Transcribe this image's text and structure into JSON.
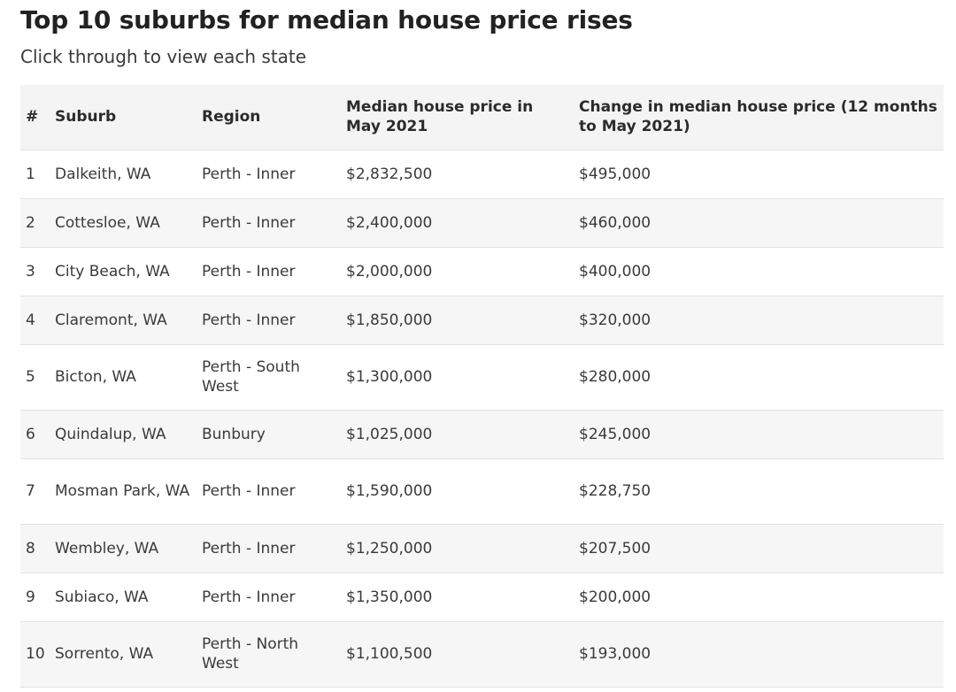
{
  "page": {
    "title": "Top 10 suburbs for median house price rises",
    "subtitle": "Click through to view each state"
  },
  "table": {
    "headers": {
      "num": "#",
      "suburb": "Suburb",
      "region": "Region",
      "median": "Median house price in May 2021",
      "change": "Change in median house price (12 months to May 2021)"
    },
    "rows": [
      {
        "num": "1",
        "suburb": "Dalkeith, WA",
        "region": "Perth - Inner",
        "median": "$2,832,500",
        "change": "$495,000"
      },
      {
        "num": "2",
        "suburb": "Cottesloe, WA",
        "region": "Perth - Inner",
        "median": "$2,400,000",
        "change": "$460,000"
      },
      {
        "num": "3",
        "suburb": "City Beach, WA",
        "region": "Perth - Inner",
        "median": "$2,000,000",
        "change": "$400,000"
      },
      {
        "num": "4",
        "suburb": "Claremont, WA",
        "region": "Perth - Inner",
        "median": "$1,850,000",
        "change": "$320,000"
      },
      {
        "num": "5",
        "suburb": "Bicton, WA",
        "region": "Perth - South West",
        "median": "$1,300,000",
        "change": "$280,000"
      },
      {
        "num": "6",
        "suburb": "Quindalup, WA",
        "region": "Bunbury",
        "median": "$1,025,000",
        "change": "$245,000"
      },
      {
        "num": "7",
        "suburb": "Mosman Park, WA",
        "region": "Perth - Inner",
        "median": "$1,590,000",
        "change": "$228,750"
      },
      {
        "num": "8",
        "suburb": "Wembley, WA",
        "region": "Perth - Inner",
        "median": "$1,250,000",
        "change": "$207,500"
      },
      {
        "num": "9",
        "suburb": "Subiaco, WA",
        "region": "Perth - Inner",
        "median": "$1,350,000",
        "change": "$200,000"
      },
      {
        "num": "10",
        "suburb": "Sorrento, WA",
        "region": "Perth - North West",
        "median": "$1,100,500",
        "change": "$193,000"
      }
    ]
  }
}
